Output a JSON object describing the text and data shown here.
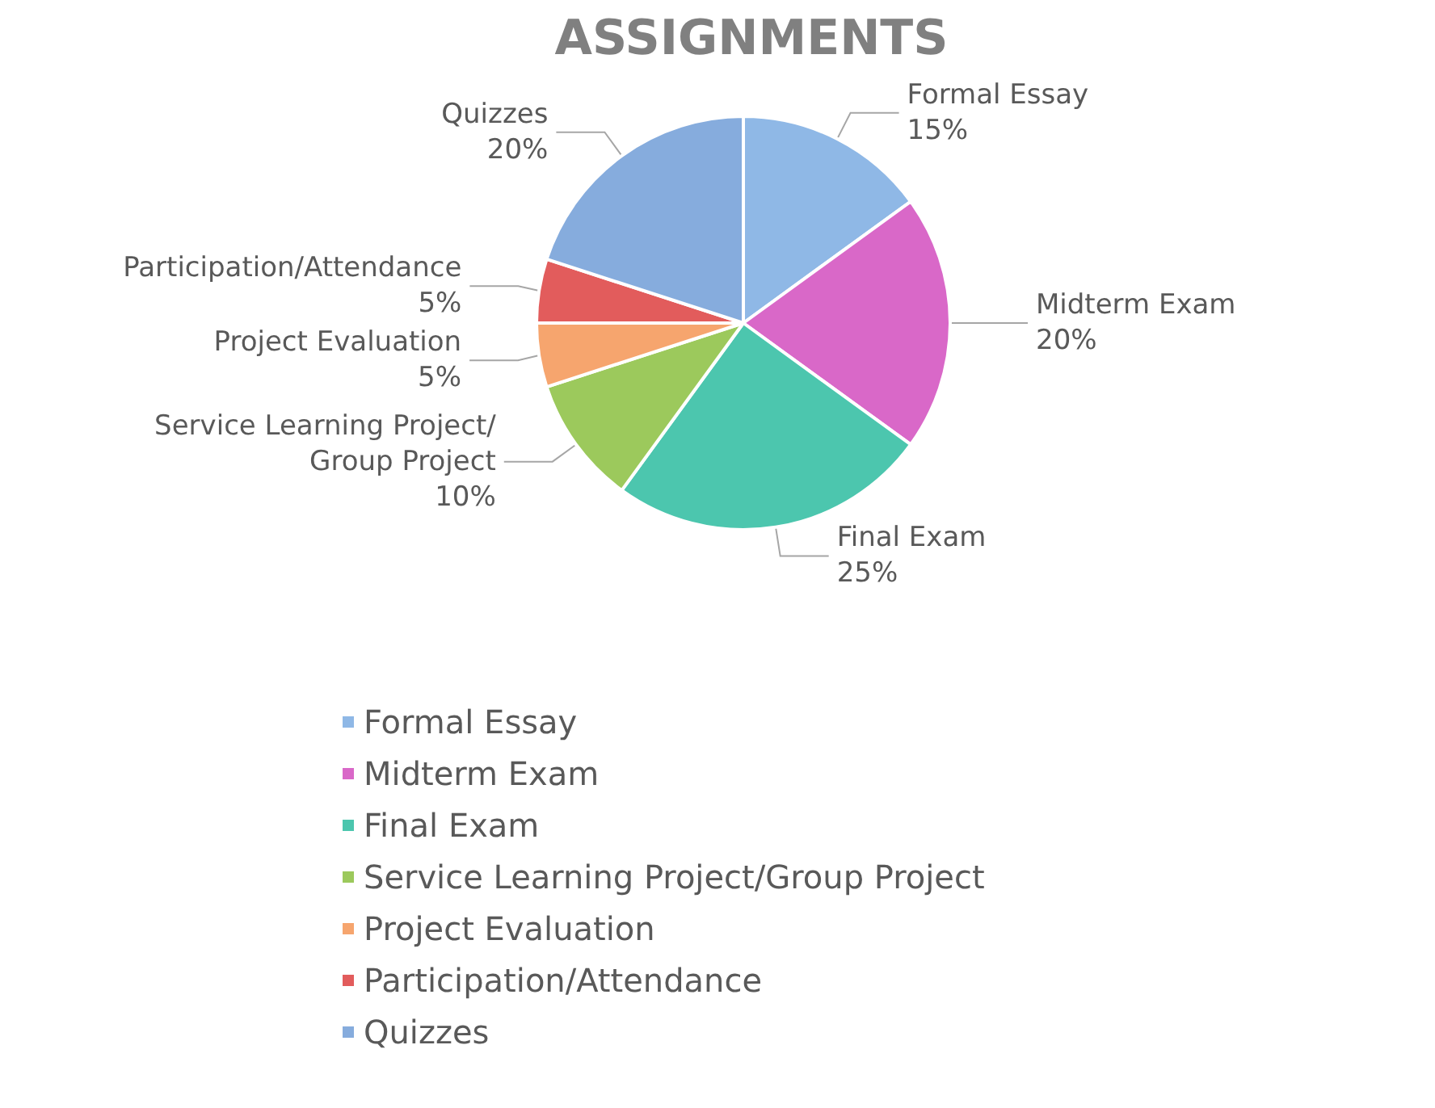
{
  "chart_data": {
    "type": "pie",
    "title": "ASSIGNMENTS",
    "categories": [
      "Formal Essay",
      "Midterm Exam",
      "Final Exam",
      "Service Learning Project/Group Project",
      "Project Evaluation",
      "Participation/Attendance",
      "Quizzes"
    ],
    "values": [
      15,
      20,
      25,
      10,
      5,
      5,
      20
    ],
    "value_labels": [
      "15%",
      "20%",
      "25%",
      "10%",
      "5%",
      "5%",
      "20%"
    ],
    "colors": [
      "#8fb8e6",
      "#d968c8",
      "#4cc6ae",
      "#9cc95c",
      "#f6a56e",
      "#e25c5c",
      "#86acdd"
    ],
    "legend": "bottom"
  }
}
